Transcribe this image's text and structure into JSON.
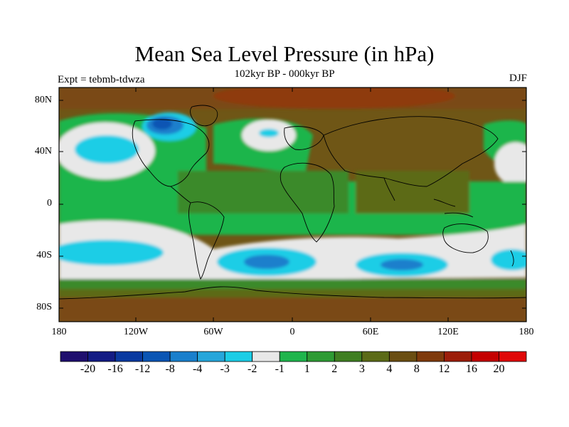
{
  "title": "Mean Sea Level Pressure (in hPa)",
  "subtitle": "102kyr BP - 000kyr BP",
  "left_label": "Expt = tebmb-tdwza",
  "right_label": "DJF",
  "lat_ticks": [
    "80N",
    "40N",
    "0",
    "40S",
    "80S"
  ],
  "lon_ticks": [
    "180",
    "120W",
    "60W",
    "0",
    "60E",
    "120E",
    "180"
  ],
  "colorbar": {
    "labels": [
      "-20",
      "-16",
      "-12",
      "-8",
      "-4",
      "-3",
      "-2",
      "-1",
      "1",
      "2",
      "3",
      "4",
      "8",
      "12",
      "16",
      "20"
    ],
    "colors": [
      "#1f0f6e",
      "#131c84",
      "#0a3aa0",
      "#0b55b4",
      "#1a7fcc",
      "#26a6da",
      "#1ccde6",
      "#e8e8e8",
      "#1fb54c",
      "#2e9b34",
      "#3f7e22",
      "#5b6a18",
      "#6a4e12",
      "#7e3a0c",
      "#9c1e0a",
      "#c40000",
      "#e00808"
    ]
  },
  "colors": {
    "land_bg": "#6a5a1a",
    "green": "#1fb54c",
    "darkgreen": "#3a8a2c",
    "olive": "#5b6a18",
    "brown": "#7a4e12",
    "white": "#e8e8e8",
    "cyan": "#1ccde6",
    "blue": "#1a7fcc",
    "deepblue": "#0b55b4",
    "red": "#b22a0a"
  }
}
